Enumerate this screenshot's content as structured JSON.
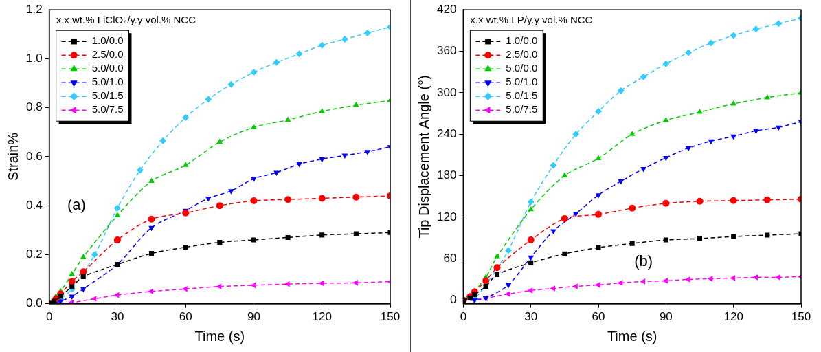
{
  "chart_data": [
    {
      "type": "line",
      "annotations": [
        {
          "text": "(a)",
          "x": 12,
          "y": 0.4
        }
      ],
      "legend_title": "x.x wt.% LiClO₄/y.y vol.% NCC",
      "x_label": "Time (s)",
      "y_label": "Strain%",
      "xlim": [
        0,
        150
      ],
      "xticks": [
        0,
        30,
        60,
        90,
        120,
        150
      ],
      "ylim": [
        0,
        1.2
      ],
      "yticks": [
        {
          "value": 0,
          "label": "0.0"
        },
        {
          "value": 0.2,
          "label": "0.2"
        },
        {
          "value": 0.4,
          "label": "0.4"
        },
        {
          "value": 0.6,
          "label": "0.6"
        },
        {
          "value": 0.8,
          "label": "0.8"
        },
        {
          "value": 1.0,
          "label": "1.0"
        },
        {
          "value": 1.2,
          "label": "1.2"
        }
      ],
      "grid": false,
      "legend": "upper left",
      "series": [
        {
          "name": "1.0/0.0",
          "color": "#000000",
          "marker": "square",
          "line_style": "dashed",
          "x": [
            0,
            2,
            5,
            10,
            15,
            30,
            45,
            60,
            75,
            90,
            105,
            120,
            135,
            150
          ],
          "values": [
            0,
            0.01,
            0.03,
            0.07,
            0.11,
            0.16,
            0.205,
            0.23,
            0.25,
            0.26,
            0.27,
            0.28,
            0.285,
            0.29
          ]
        },
        {
          "name": "2.5/0.0",
          "color": "#ff0000",
          "marker": "circle",
          "line_style": "dashed",
          "x": [
            0,
            3,
            5,
            10,
            15,
            30,
            45,
            60,
            75,
            90,
            105,
            120,
            135,
            150
          ],
          "values": [
            0,
            0.02,
            0.04,
            0.09,
            0.13,
            0.26,
            0.345,
            0.37,
            0.4,
            0.42,
            0.425,
            0.43,
            0.435,
            0.44
          ]
        },
        {
          "name": "5.0/0.0",
          "color": "#00cc00",
          "marker": "triangle_up",
          "line_style": "dashed",
          "x": [
            0,
            3,
            5,
            10,
            15,
            30,
            45,
            60,
            75,
            90,
            105,
            120,
            135,
            150
          ],
          "values": [
            0,
            0.03,
            0.05,
            0.12,
            0.19,
            0.36,
            0.5,
            0.565,
            0.66,
            0.72,
            0.75,
            0.785,
            0.81,
            0.83
          ]
        },
        {
          "name": "5.0/1.0",
          "color": "#0000ff",
          "marker": "triangle_down",
          "line_style": "dashed",
          "x": [
            0,
            5,
            10,
            15,
            30,
            45,
            60,
            70,
            80,
            90,
            100,
            110,
            120,
            130,
            140,
            150
          ],
          "values": [
            0,
            0.01,
            0.03,
            0.06,
            0.16,
            0.31,
            0.38,
            0.43,
            0.46,
            0.51,
            0.535,
            0.57,
            0.59,
            0.605,
            0.62,
            0.64
          ]
        },
        {
          "name": "5.0/1.5",
          "color": "#33ccff",
          "marker": "diamond",
          "line_style": "dashed",
          "x": [
            0,
            5,
            10,
            20,
            30,
            40,
            50,
            60,
            70,
            80,
            90,
            100,
            110,
            120,
            130,
            140,
            150
          ],
          "values": [
            0,
            0.02,
            0.06,
            0.2,
            0.39,
            0.545,
            0.665,
            0.76,
            0.835,
            0.895,
            0.945,
            0.985,
            1.02,
            1.055,
            1.08,
            1.105,
            1.13
          ]
        },
        {
          "name": "5.0/7.5",
          "color": "#ff00ff",
          "marker": "triangle_left",
          "line_style": "dashed",
          "x": [
            0,
            10,
            20,
            30,
            45,
            60,
            75,
            90,
            105,
            120,
            135,
            150
          ],
          "values": [
            0,
            0.005,
            0.02,
            0.035,
            0.05,
            0.06,
            0.07,
            0.075,
            0.08,
            0.083,
            0.085,
            0.09
          ]
        }
      ]
    },
    {
      "type": "line",
      "annotations": [
        {
          "text": "(b)",
          "x": 80,
          "y": 55
        }
      ],
      "legend_title": "x.x wt.% LP/y.y vol.% NCC",
      "x_label": "Time (s)",
      "y_label": "Tip Displacement Angle (°)",
      "xlim": [
        0,
        150
      ],
      "xticks": [
        0,
        30,
        60,
        90,
        120,
        150
      ],
      "ylim": [
        -5,
        420
      ],
      "yticks": [
        0,
        60,
        120,
        180,
        240,
        300,
        360,
        420
      ],
      "grid": false,
      "legend": "upper left",
      "series": [
        {
          "name": "1.0/0.0",
          "color": "#000000",
          "marker": "square",
          "line_style": "dashed",
          "x": [
            0,
            3,
            5,
            10,
            15,
            30,
            45,
            60,
            75,
            90,
            105,
            120,
            135,
            150
          ],
          "values": [
            0,
            3,
            8,
            20,
            37,
            54,
            67,
            76,
            82,
            87,
            89,
            92,
            94,
            96
          ]
        },
        {
          "name": "2.5/0.0",
          "color": "#ff0000",
          "marker": "circle",
          "line_style": "dashed",
          "x": [
            0,
            3,
            5,
            10,
            15,
            30,
            45,
            60,
            75,
            90,
            105,
            120,
            135,
            150
          ],
          "values": [
            0,
            5,
            12,
            28,
            47,
            87,
            118,
            124,
            133,
            140,
            143,
            144,
            145,
            146
          ]
        },
        {
          "name": "5.0/0.0",
          "color": "#00cc00",
          "marker": "triangle_up",
          "line_style": "dashed",
          "x": [
            0,
            3,
            5,
            10,
            15,
            30,
            45,
            60,
            75,
            90,
            105,
            120,
            135,
            150
          ],
          "values": [
            0,
            6,
            13,
            33,
            63,
            131,
            180,
            205,
            240,
            260,
            272,
            284,
            293,
            300
          ]
        },
        {
          "name": "5.0/1.0",
          "color": "#0000ff",
          "marker": "triangle_down",
          "line_style": "dashed",
          "x": [
            0,
            5,
            10,
            20,
            30,
            40,
            50,
            60,
            70,
            80,
            90,
            100,
            110,
            120,
            130,
            140,
            150
          ],
          "values": [
            0,
            0,
            3,
            22,
            62,
            100,
            125,
            152,
            172,
            190,
            206,
            220,
            230,
            237,
            245,
            250,
            258
          ]
        },
        {
          "name": "5.0/1.5",
          "color": "#33ccff",
          "marker": "diamond",
          "line_style": "dashed",
          "x": [
            0,
            5,
            10,
            20,
            30,
            40,
            50,
            60,
            70,
            80,
            90,
            100,
            110,
            120,
            130,
            140,
            150
          ],
          "values": [
            0,
            3,
            22,
            72,
            142,
            195,
            240,
            273,
            303,
            323,
            342,
            358,
            372,
            383,
            392,
            400,
            408
          ]
        },
        {
          "name": "5.0/7.5",
          "color": "#ff00ff",
          "marker": "triangle_left",
          "line_style": "dashed",
          "x": [
            0,
            10,
            20,
            30,
            40,
            50,
            60,
            70,
            80,
            90,
            100,
            110,
            120,
            130,
            140,
            150
          ],
          "values": [
            0,
            3,
            9,
            14,
            17,
            20,
            22,
            25,
            27,
            28,
            30,
            31,
            32,
            33,
            33,
            34
          ]
        }
      ]
    }
  ]
}
